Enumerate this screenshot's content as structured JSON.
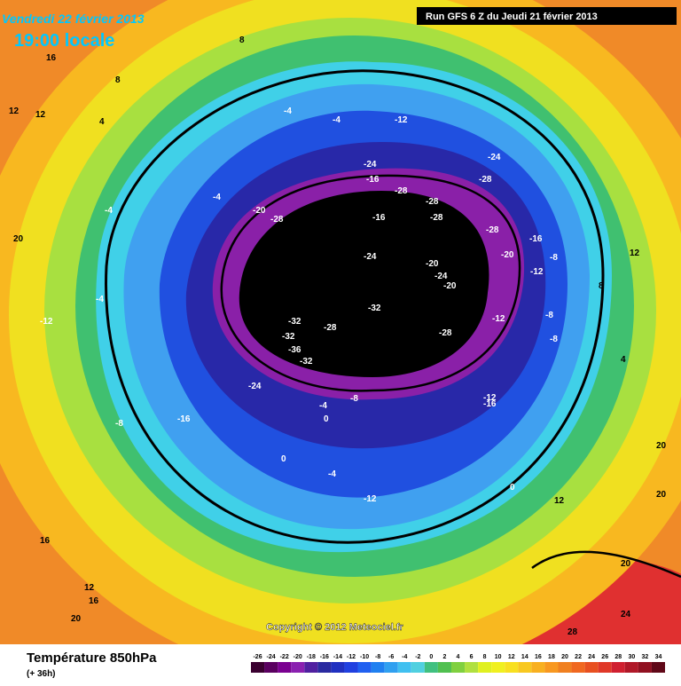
{
  "header": {
    "date": "Vendredi 22 février 2013",
    "time": "19:00 locale",
    "run": "Run GFS 6 Z du Jeudi 21 février 2013"
  },
  "map": {
    "copyright": "Copyright © 2012 Meteociel.fr",
    "labels": [
      -12,
      -24,
      -4,
      -4,
      -12,
      -16,
      -24,
      -20,
      -28,
      -28,
      -16,
      -28,
      -28,
      -28,
      -24,
      -28,
      -20,
      -20,
      -24,
      -20,
      -32,
      -32,
      -36,
      -32,
      -28,
      -32,
      -28,
      -24,
      -16,
      -8,
      -4,
      0,
      0,
      -4,
      -12,
      -16,
      -12,
      0,
      -8,
      -8,
      -4,
      -12,
      -16,
      -8,
      -4,
      -4,
      -8,
      -12,
      8,
      4,
      12,
      12,
      16,
      20,
      20,
      24,
      28,
      20,
      12,
      12,
      16,
      20,
      8,
      4,
      8,
      12,
      16,
      20
    ]
  },
  "footer": {
    "title": "Température 850hPa",
    "lead": "(+ 36h)"
  },
  "colorbar": {
    "ticks": [
      -26,
      -24,
      -22,
      -20,
      -18,
      -16,
      -14,
      -12,
      -10,
      -8,
      -6,
      -4,
      -2,
      0,
      2,
      4,
      6,
      8,
      10,
      12,
      14,
      16,
      18,
      20,
      22,
      24,
      26,
      28,
      30,
      32,
      34
    ],
    "colors": [
      "#3a0030",
      "#5a0060",
      "#7a0090",
      "#8a20b0",
      "#5020a0",
      "#2a2aa0",
      "#2030c0",
      "#2040e0",
      "#2060f0",
      "#2080f0",
      "#30a0f0",
      "#40c0f0",
      "#50d0e0",
      "#40c080",
      "#50c050",
      "#80d040",
      "#b0e040",
      "#e0f020",
      "#f0f020",
      "#f8e020",
      "#f8c820",
      "#f8b020",
      "#f89820",
      "#f08020",
      "#f06820",
      "#e85020",
      "#e03828",
      "#d02030",
      "#b01828",
      "#901020",
      "#600818"
    ]
  }
}
